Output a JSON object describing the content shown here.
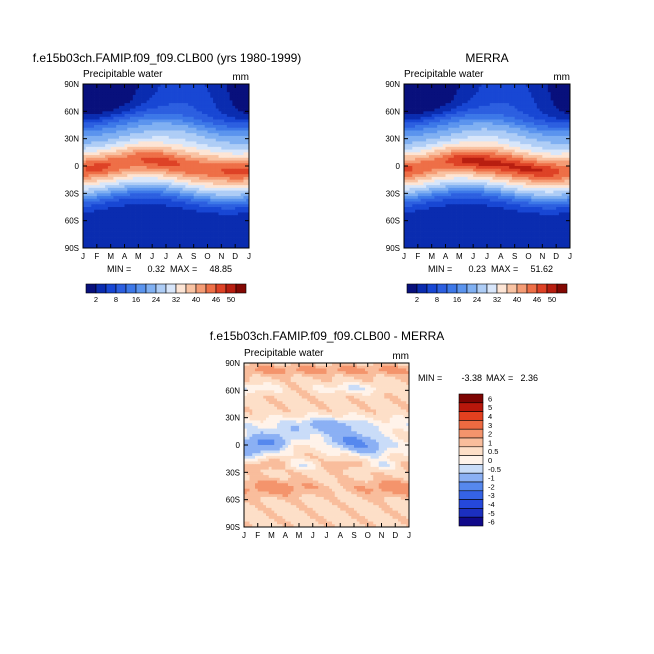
{
  "chart_data": [
    {
      "type": "heatmap",
      "title": "f.e15b03ch.FAMIP.f09_f09.CLB00 (yrs 1980-1999)",
      "subtitle": "Precipitable water",
      "units": "mm",
      "x_tick_labels": [
        "J",
        "F",
        "M",
        "A",
        "M",
        "J",
        "J",
        "A",
        "S",
        "O",
        "N",
        "D",
        "J"
      ],
      "y_tick_labels": [
        "90N",
        "60N",
        "30N",
        "0",
        "30S",
        "60S",
        "90S"
      ],
      "y_tick_values": [
        90,
        60,
        30,
        0,
        -30,
        -60,
        -90
      ],
      "stats_min_label": "MIN =",
      "stats_min": "0.32",
      "stats_max_label": "MAX =",
      "stats_max": "48.85",
      "min_value": 0.32,
      "max_value": 48.85,
      "colorbar_levels": [
        2,
        5,
        8,
        12,
        16,
        20,
        24,
        28,
        32,
        36,
        40,
        43,
        46,
        48,
        50
      ],
      "colorbar_tick_labels": [
        "2",
        "8",
        "16",
        "24",
        "32",
        "40",
        "46",
        "50"
      ],
      "colorbar_orientation": "horizontal"
    },
    {
      "type": "heatmap",
      "title": "MERRA",
      "subtitle": "Precipitable water",
      "units": "mm",
      "x_tick_labels": [
        "J",
        "F",
        "M",
        "A",
        "M",
        "J",
        "J",
        "A",
        "S",
        "O",
        "N",
        "D",
        "J"
      ],
      "y_tick_labels": [
        "90N",
        "60N",
        "30N",
        "0",
        "30S",
        "60S",
        "90S"
      ],
      "y_tick_values": [
        90,
        60,
        30,
        0,
        -30,
        -60,
        -90
      ],
      "stats_min_label": "MIN =",
      "stats_min": "0.23",
      "stats_max_label": "MAX =",
      "stats_max": "51.62",
      "min_value": 0.23,
      "max_value": 51.62,
      "colorbar_levels": [
        2,
        5,
        8,
        12,
        16,
        20,
        24,
        28,
        32,
        36,
        40,
        43,
        46,
        48,
        50
      ],
      "colorbar_tick_labels": [
        "2",
        "8",
        "16",
        "24",
        "32",
        "40",
        "46",
        "50"
      ],
      "colorbar_orientation": "horizontal"
    },
    {
      "type": "heatmap",
      "title": "f.e15b03ch.FAMIP.f09_f09.CLB00 - MERRA",
      "subtitle": "Precipitable water",
      "units": "mm",
      "x_tick_labels": [
        "J",
        "F",
        "M",
        "A",
        "M",
        "J",
        "J",
        "A",
        "S",
        "O",
        "N",
        "D",
        "J"
      ],
      "y_tick_labels": [
        "90N",
        "60N",
        "30N",
        "0",
        "30S",
        "60S",
        "90S"
      ],
      "y_tick_values": [
        90,
        60,
        30,
        0,
        -30,
        -60,
        -90
      ],
      "stats_min_label": "MIN =",
      "stats_min": "-3.38",
      "stats_max_label": "MAX =",
      "stats_max": "2.36",
      "min_value": -3.38,
      "max_value": 2.36,
      "colorbar_levels": [
        -6,
        -5,
        -4,
        -3,
        -2,
        -1,
        -0.5,
        0,
        0.5,
        1,
        2,
        3,
        4,
        5,
        6
      ],
      "colorbar_tick_labels": [
        "6",
        "5",
        "4",
        "3",
        "2",
        "1",
        "0.5",
        "0",
        "-0.5",
        "-1",
        "-2",
        "-3",
        "-4",
        "-5",
        "-6"
      ],
      "colorbar_orientation": "vertical"
    }
  ],
  "colors": {
    "abs_palette": [
      "#08107c",
      "#0a2cb0",
      "#1847d4",
      "#2c5fe0",
      "#3d78e8",
      "#5b94ee",
      "#80b0f2",
      "#aecdf6",
      "#d8e6fa",
      "#fde5d5",
      "#f9c3a3",
      "#f59c75",
      "#ee6f47",
      "#de4226",
      "#b81e10",
      "#830803"
    ],
    "diff_palette": [
      "#10098a",
      "#1b2fc0",
      "#2548dc",
      "#3563e6",
      "#5688ee",
      "#8bb0f4",
      "#c9dcf8",
      "#fff3ea",
      "#fddfc8",
      "#f9bd9c",
      "#f4946c",
      "#ee6a41",
      "#e2401f",
      "#b8170b",
      "#7d0402"
    ]
  }
}
